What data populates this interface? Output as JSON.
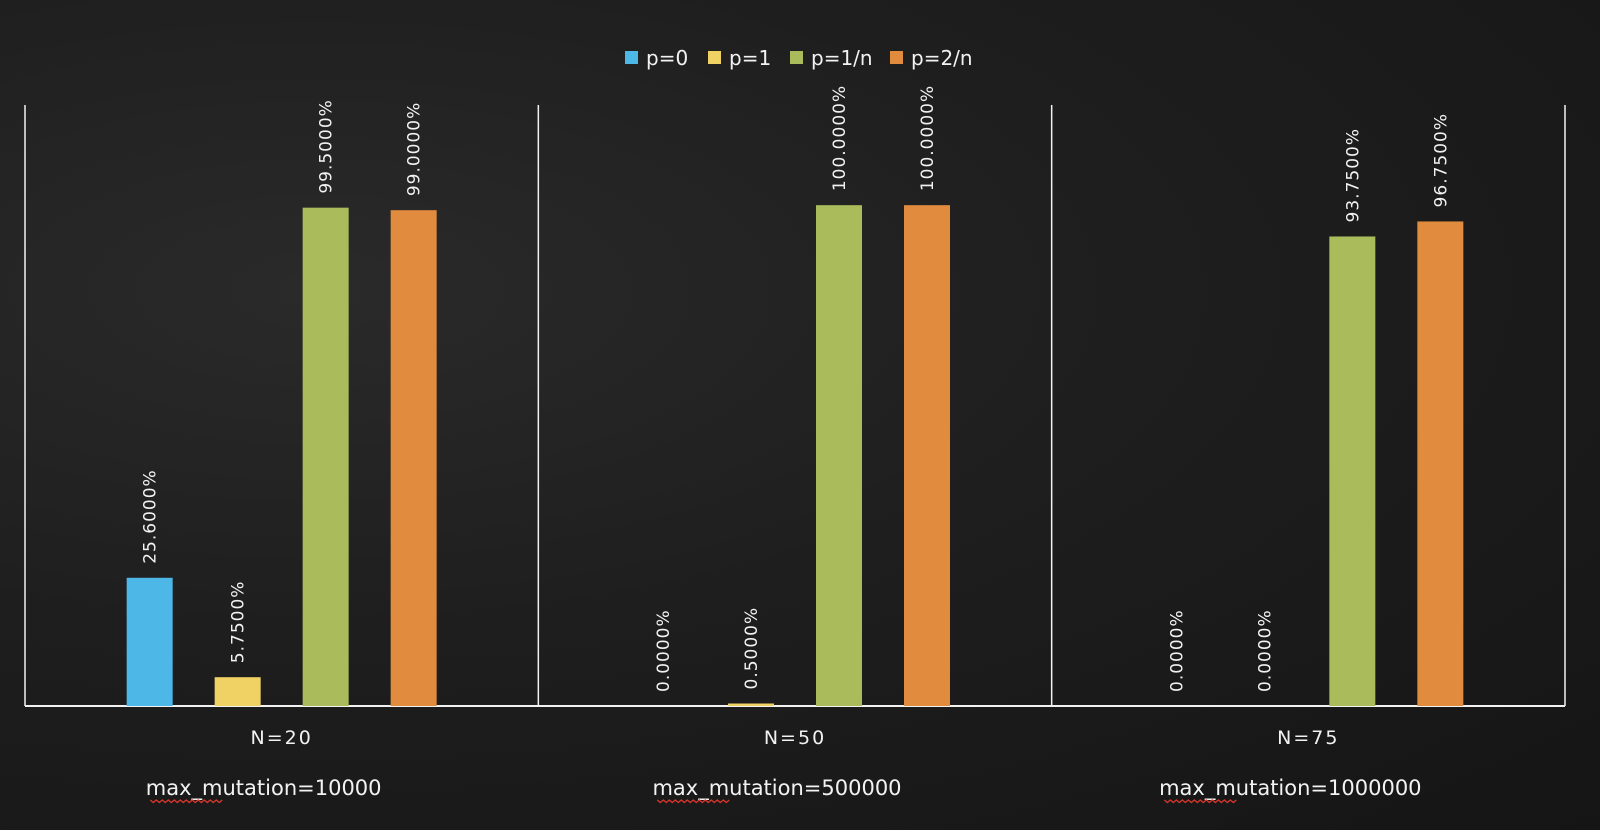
{
  "chart_data": {
    "type": "bar",
    "categories": [
      "N=20",
      "N=50",
      "N=75"
    ],
    "subcategories": [
      "max_mutation=10000",
      "max_mutation=500000",
      "max_mutation=1000000"
    ],
    "series": [
      {
        "name": "p=0",
        "color": "#4db8e8",
        "values": [
          25.6,
          0.0,
          0.0
        ],
        "labels": [
          "25.6000%",
          "0.0000%",
          "0.0000%"
        ]
      },
      {
        "name": "p=1",
        "color": "#f0d264",
        "values": [
          5.75,
          0.5,
          0.0
        ],
        "labels": [
          "5.7500%",
          "0.5000%",
          "0.0000%"
        ]
      },
      {
        "name": "p=1/n",
        "color": "#a9bb5a",
        "values": [
          99.5,
          100.0,
          93.75
        ],
        "labels": [
          "99.5000%",
          "100.0000%",
          "93.7500%"
        ]
      },
      {
        "name": "p=2/n",
        "color": "#e08b3e",
        "values": [
          99.0,
          100.0,
          96.75
        ],
        "labels": [
          "99.0000%",
          "100.0000%",
          "96.7500%"
        ]
      }
    ],
    "ylim": [
      0,
      120
    ],
    "grid": false,
    "legend_position": "top-center",
    "title": "",
    "xlabel": "",
    "ylabel": ""
  }
}
